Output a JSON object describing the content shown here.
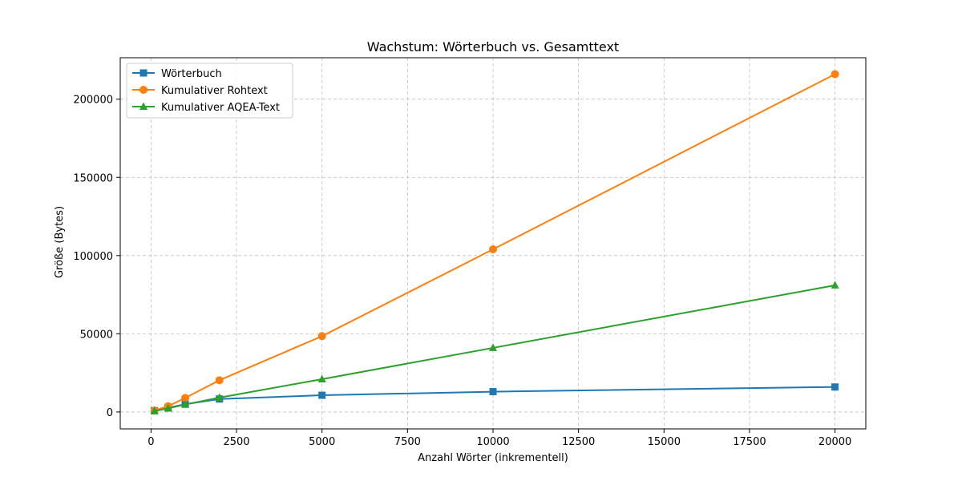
{
  "chart_data": {
    "type": "line",
    "title": "Wachstum: Wörterbuch vs. Gesamttext",
    "xlabel": "Anzahl Wörter (inkrementell)",
    "ylabel": "Größe (Bytes)",
    "xlim": [
      -900,
      20900
    ],
    "ylim": [
      -10800,
      226500
    ],
    "x_ticks": [
      0,
      2500,
      5000,
      7500,
      10000,
      12500,
      15000,
      17500,
      20000
    ],
    "y_ticks": [
      0,
      50000,
      100000,
      150000,
      200000
    ],
    "grid": true,
    "legend_position": "upper-left",
    "series": [
      {
        "name": "Wörterbuch",
        "color": "#1f77b4",
        "marker": "square",
        "x": [
          100,
          500,
          1000,
          2000,
          5000,
          10000,
          20000
        ],
        "y": [
          800,
          2700,
          5000,
          8300,
          10700,
          13000,
          16000
        ]
      },
      {
        "name": "Kumulativer Rohtext",
        "color": "#ff7f0e",
        "marker": "circle",
        "x": [
          100,
          500,
          1000,
          2000,
          5000,
          10000,
          20000
        ],
        "y": [
          1000,
          3700,
          9000,
          20300,
          48500,
          104000,
          216000
        ]
      },
      {
        "name": "Kumulativer AQEA-Text",
        "color": "#2ca02c",
        "marker": "triangle",
        "x": [
          100,
          500,
          1000,
          2000,
          5000,
          10000,
          20000
        ],
        "y": [
          600,
          2300,
          4800,
          9200,
          21000,
          41000,
          81000
        ]
      }
    ]
  }
}
